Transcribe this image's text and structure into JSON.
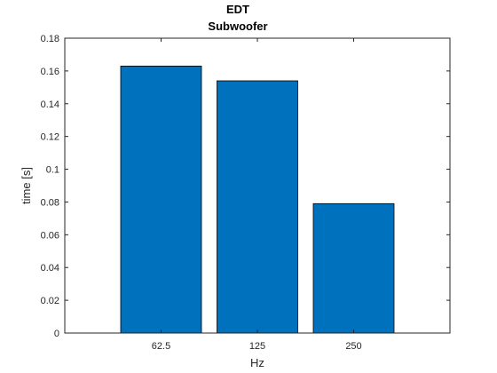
{
  "chart_data": {
    "type": "bar",
    "title": "EDT",
    "subtitle": "Subwoofer",
    "xlabel": "Hz",
    "ylabel": "time [s]",
    "categories": [
      "62.5",
      "125",
      "250"
    ],
    "values": [
      0.163,
      0.154,
      0.079
    ],
    "ylim": [
      0,
      0.18
    ],
    "yticks": [
      0,
      0.02,
      0.04,
      0.06,
      0.08,
      0.1,
      0.12,
      0.14,
      0.16,
      0.18
    ],
    "ytick_labels": [
      "0",
      "0.02",
      "0.04",
      "0.06",
      "0.08",
      "0.1",
      "0.12",
      "0.14",
      "0.16",
      "0.18"
    ],
    "grid": false,
    "bar_color": "#0072BD"
  }
}
